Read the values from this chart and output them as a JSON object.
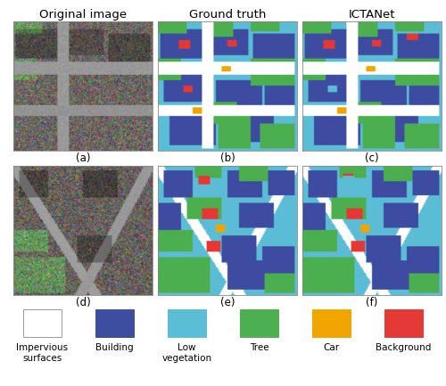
{
  "col_titles": [
    "Original image",
    "Ground truth",
    "ICTANet"
  ],
  "row_labels_top": [
    "(a)",
    "(b)",
    "(c)"
  ],
  "row_labels_bot": [
    "(d)",
    "(e)",
    "(f)"
  ],
  "legend_labels": [
    "Impervious\nsurfaces",
    "Building",
    "Low\nvegetation",
    "Tree",
    "Car",
    "Background"
  ],
  "legend_colors": [
    "#ffffff",
    "#3d4da0",
    "#5bbdd6",
    "#4caf50",
    "#f0a500",
    "#e53935"
  ],
  "legend_edge_colors": [
    "#999999",
    "#3d4da0",
    "#5bbdd6",
    "#4caf50",
    "#f0a500",
    "#e53935"
  ],
  "title_fontsize": 9.5,
  "label_fontsize": 8.5,
  "legend_fontsize": 7.5,
  "fig_bg": "#ffffff",
  "imp_color": [
    1.0,
    1.0,
    1.0
  ],
  "bld_color": [
    0.24,
    0.3,
    0.63
  ],
  "veg_color": [
    0.36,
    0.74,
    0.84
  ],
  "tree_color": [
    0.3,
    0.69,
    0.31
  ],
  "car_color": [
    0.94,
    0.65,
    0.0
  ],
  "bg_color": [
    0.9,
    0.22,
    0.21
  ]
}
